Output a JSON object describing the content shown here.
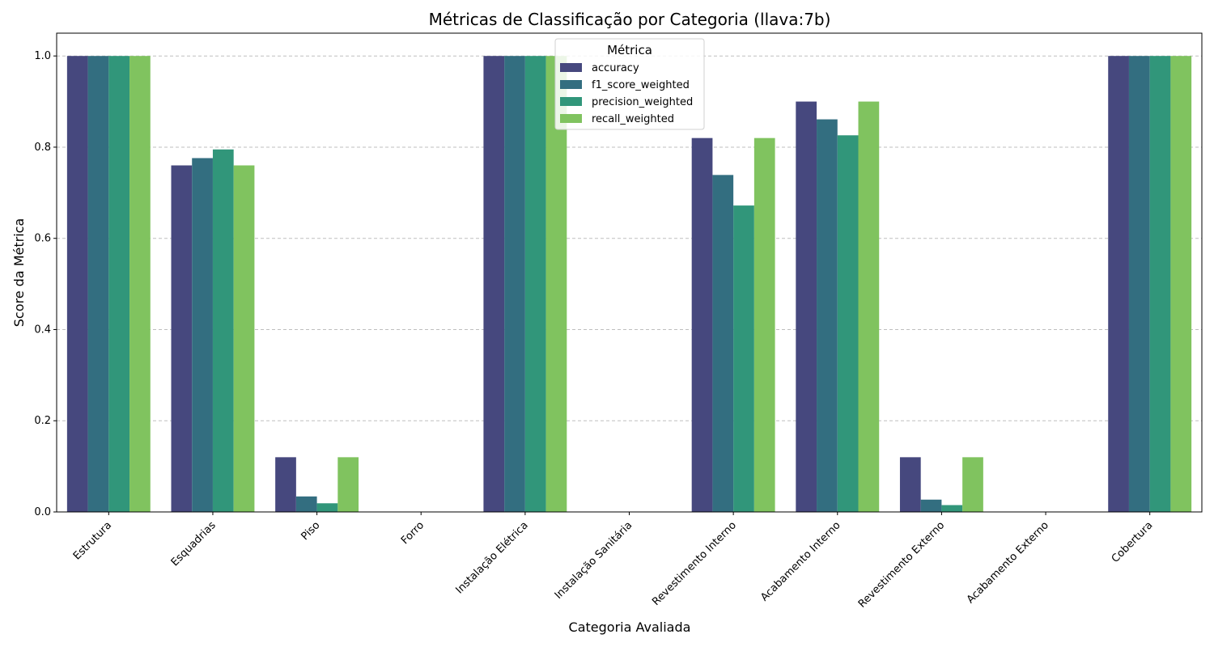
{
  "chart_data": {
    "type": "bar",
    "title": "Métricas de Classificação por Categoria (llava:7b)",
    "xlabel": "Categoria Avaliada",
    "ylabel": "Score da Métrica",
    "ylim": [
      0,
      1.05
    ],
    "yticks": [
      "0.0",
      "0.2",
      "0.4",
      "0.6",
      "0.8",
      "1.0"
    ],
    "grid": "y-dashed",
    "legend": {
      "title": "Métrica",
      "placement": "top-center"
    },
    "categories": [
      "Estrutura",
      "Esquadrias",
      "Piso",
      "Forro",
      "Instalação Elétrica",
      "Instalação Sanitária",
      "Revestimento Interno",
      "Acabamento Interno",
      "Revestimento Externo",
      "Acabamento Externo",
      "Cobertura"
    ],
    "series": [
      {
        "name": "accuracy",
        "color": "#46487e",
        "values": [
          1.0,
          0.76,
          0.12,
          0.0,
          1.0,
          0.0,
          0.82,
          0.9,
          0.12,
          0.0,
          1.0
        ]
      },
      {
        "name": "f1_score_weighted",
        "color": "#336e80",
        "values": [
          1.0,
          0.776,
          0.034,
          0.0,
          1.0,
          0.0,
          0.739,
          0.861,
          0.027,
          0.0,
          1.0
        ]
      },
      {
        "name": "precision_weighted",
        "color": "#31967a",
        "values": [
          1.0,
          0.795,
          0.019,
          0.0,
          1.0,
          0.0,
          0.672,
          0.826,
          0.015,
          0.0,
          1.0
        ]
      },
      {
        "name": "recall_weighted",
        "color": "#80c35f",
        "values": [
          1.0,
          0.76,
          0.12,
          0.0,
          1.0,
          0.0,
          0.82,
          0.9,
          0.12,
          0.0,
          1.0
        ]
      }
    ]
  }
}
